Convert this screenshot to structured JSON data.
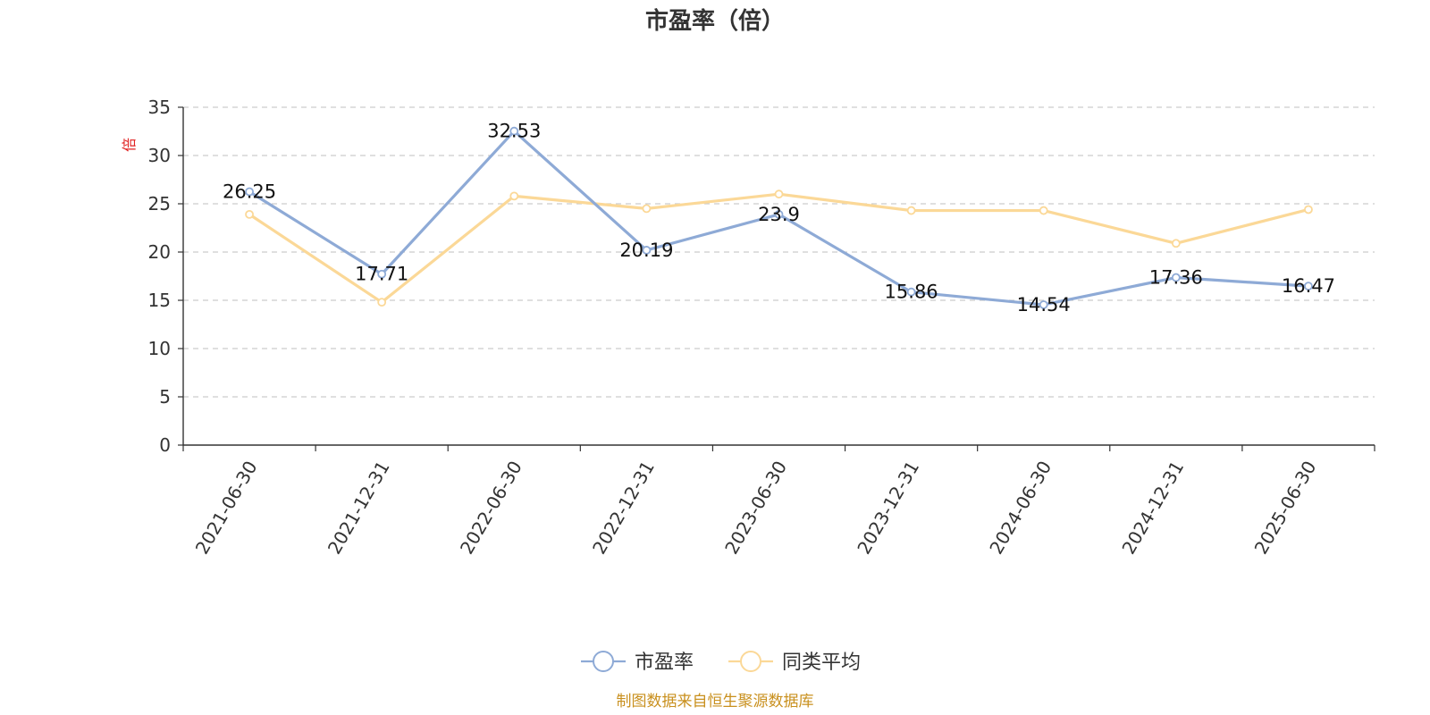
{
  "chart_data": {
    "type": "line",
    "title": "市盈率（倍）",
    "ylabel": "倍",
    "xlabel": "",
    "ylim": [
      0,
      35
    ],
    "yticks": [
      0,
      5,
      10,
      15,
      20,
      25,
      30,
      35
    ],
    "grid": true,
    "legend_position": "bottom-center",
    "categories": [
      "2021-06-30",
      "2021-12-31",
      "2022-06-30",
      "2022-12-31",
      "2023-06-30",
      "2023-12-31",
      "2024-06-30",
      "2024-12-31",
      "2025-06-30"
    ],
    "series": [
      {
        "name": "市盈率",
        "color": "#8eaad6",
        "values": [
          26.25,
          17.71,
          32.53,
          20.19,
          23.9,
          15.86,
          14.54,
          17.36,
          16.47
        ],
        "labels": [
          "26.25",
          "17.71",
          "32.53",
          "20.19",
          "23.9",
          "15.86",
          "14.54",
          "17.36",
          "16.47"
        ]
      },
      {
        "name": "同类平均",
        "color": "#fbd897",
        "values": [
          23.9,
          14.8,
          25.8,
          24.5,
          26.0,
          24.3,
          24.3,
          20.9,
          24.4
        ]
      }
    ],
    "source": "制图数据来自恒生聚源数据库"
  }
}
